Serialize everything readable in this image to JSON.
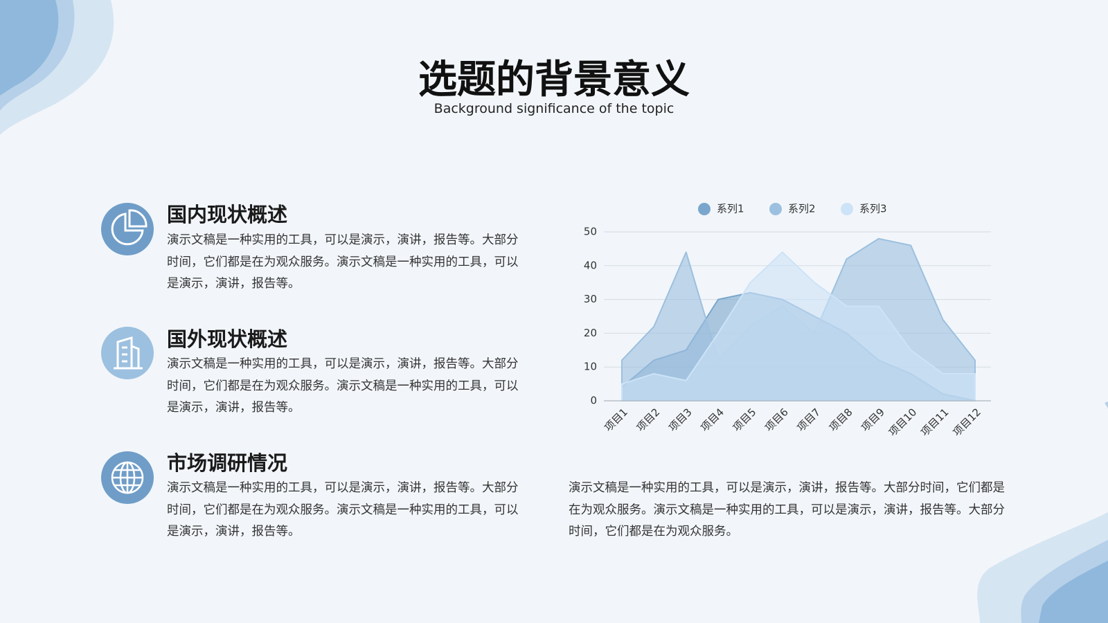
{
  "header": {
    "title": "选题的背景意义",
    "subtitle": "Background significance of the topic"
  },
  "sections": [
    {
      "heading": "国内现状概述",
      "body": "演示文稿是一种实用的工具，可以是演示，演讲，报告等。大部分时间，它们都是在为观众服务。演示文稿是一种实用的工具，可以是演示，演讲，报告等。"
    },
    {
      "heading": "国外现状概述",
      "body": "演示文稿是一种实用的工具，可以是演示，演讲，报告等。大部分时间，它们都是在为观众服务。演示文稿是一种实用的工具，可以是演示，演讲，报告等。"
    },
    {
      "heading": "市场调研情况",
      "body": "演示文稿是一种实用的工具，可以是演示，演讲，报告等。大部分时间，它们都是在为观众服务。演示文稿是一种实用的工具，可以是演示，演讲，报告等。"
    }
  ],
  "chart_data": {
    "type": "area",
    "categories": [
      "项目1",
      "项目2",
      "项目3",
      "项目4",
      "项目5",
      "项目6",
      "项目7",
      "项目8",
      "项目9",
      "项目10",
      "项目11",
      "项目12"
    ],
    "series": [
      {
        "name": "系列1",
        "color": "#7aa6cd",
        "values": [
          4,
          12,
          15,
          30,
          32,
          30,
          25,
          20,
          12,
          8,
          2,
          0
        ]
      },
      {
        "name": "系列2",
        "color": "#9cc0df",
        "values": [
          12,
          22,
          44,
          12,
          22,
          28,
          20,
          42,
          48,
          46,
          24,
          12
        ]
      },
      {
        "name": "系列3",
        "color": "#cde3f7",
        "values": [
          5,
          8,
          6,
          20,
          35,
          44,
          35,
          28,
          28,
          15,
          8,
          8
        ]
      }
    ],
    "ylim": [
      0,
      50
    ],
    "yticks": [
      0,
      10,
      20,
      30,
      40,
      50
    ],
    "grid": true,
    "legend": "top"
  },
  "chart_caption": "演示文稿是一种实用的工具，可以是演示，演讲，报告等。大部分时间，它们都是在为观众服务。演示文稿是一种实用的工具，可以是演示，演讲，报告等。大部分时间，它们都是在为观众服务。"
}
